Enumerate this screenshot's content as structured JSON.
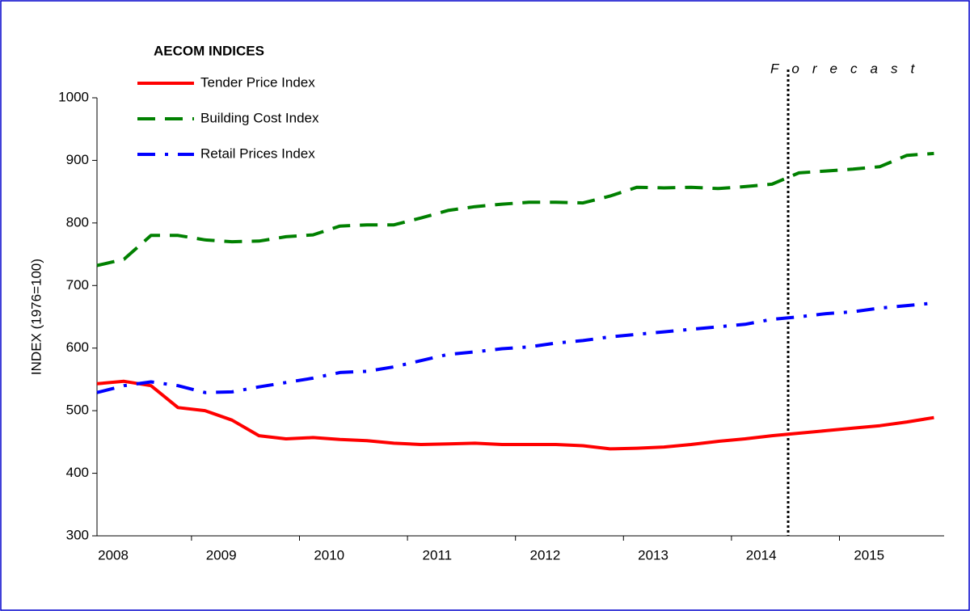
{
  "chart_data": {
    "type": "line",
    "legend_title": "AECOM  INDICES",
    "ylabel": "INDEX (1976=100)",
    "annotation": {
      "text": "Forecast",
      "x": 25.6
    },
    "categories": [
      "2008",
      null,
      null,
      null,
      "2009",
      null,
      null,
      null,
      "2010",
      null,
      null,
      null,
      "2011",
      null,
      null,
      null,
      "2012",
      null,
      null,
      null,
      "2013",
      null,
      null,
      null,
      "2014",
      null,
      null,
      null,
      "2015",
      null,
      null,
      null
    ],
    "series": [
      {
        "name": "Tender Price Index",
        "color": "#ff0000",
        "style": "solid",
        "values": [
          543,
          547,
          540,
          505,
          500,
          485,
          460,
          455,
          457,
          454,
          452,
          448,
          446,
          447,
          448,
          446,
          446,
          446,
          444,
          439,
          440,
          442,
          446,
          451,
          455,
          460,
          464,
          468,
          472,
          476,
          482,
          489
        ]
      },
      {
        "name": "Building Cost Index",
        "color": "#008000",
        "style": "dashed",
        "values": [
          732,
          742,
          780,
          780,
          773,
          770,
          771,
          778,
          781,
          795,
          797,
          797,
          808,
          820,
          826,
          830,
          833,
          833,
          832,
          843,
          857,
          856,
          857,
          855,
          858,
          862,
          880,
          883,
          886,
          890,
          908,
          911
        ]
      },
      {
        "name": "Retail Prices Index",
        "color": "#0000ff",
        "style": "dashdot",
        "values": [
          529,
          540,
          546,
          540,
          529,
          530,
          538,
          545,
          552,
          561,
          563,
          570,
          580,
          590,
          594,
          599,
          602,
          608,
          612,
          618,
          622,
          626,
          630,
          634,
          638,
          646,
          650,
          655,
          658,
          664,
          668,
          672
        ]
      }
    ],
    "ylim": [
      300,
      1000
    ],
    "yticks": [
      300,
      400,
      500,
      600,
      700,
      800,
      900,
      1000
    ]
  }
}
